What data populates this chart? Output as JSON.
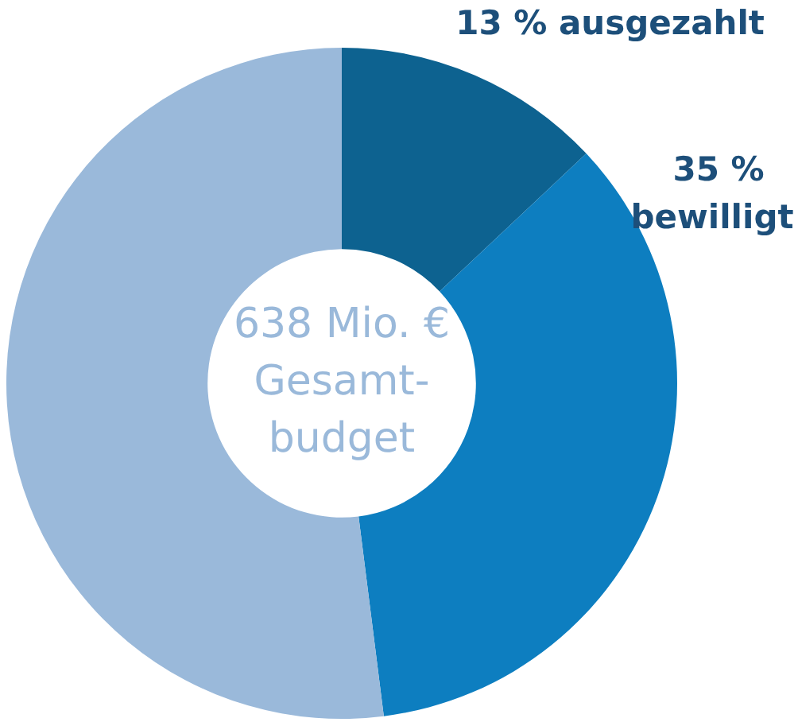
{
  "chart_data": {
    "type": "donut",
    "categories": [
      "ausgezahlt",
      "bewilligt",
      null
    ],
    "values": [
      13,
      35,
      52
    ],
    "colors": [
      "#0d6290",
      "#0d7ec0",
      "#9ab9da"
    ],
    "value_labels": [
      "13 %",
      "35 %",
      null
    ],
    "annotations": [
      "638 Mio. €",
      "Gesamt-",
      "budget"
    ],
    "legend": false
  }
}
